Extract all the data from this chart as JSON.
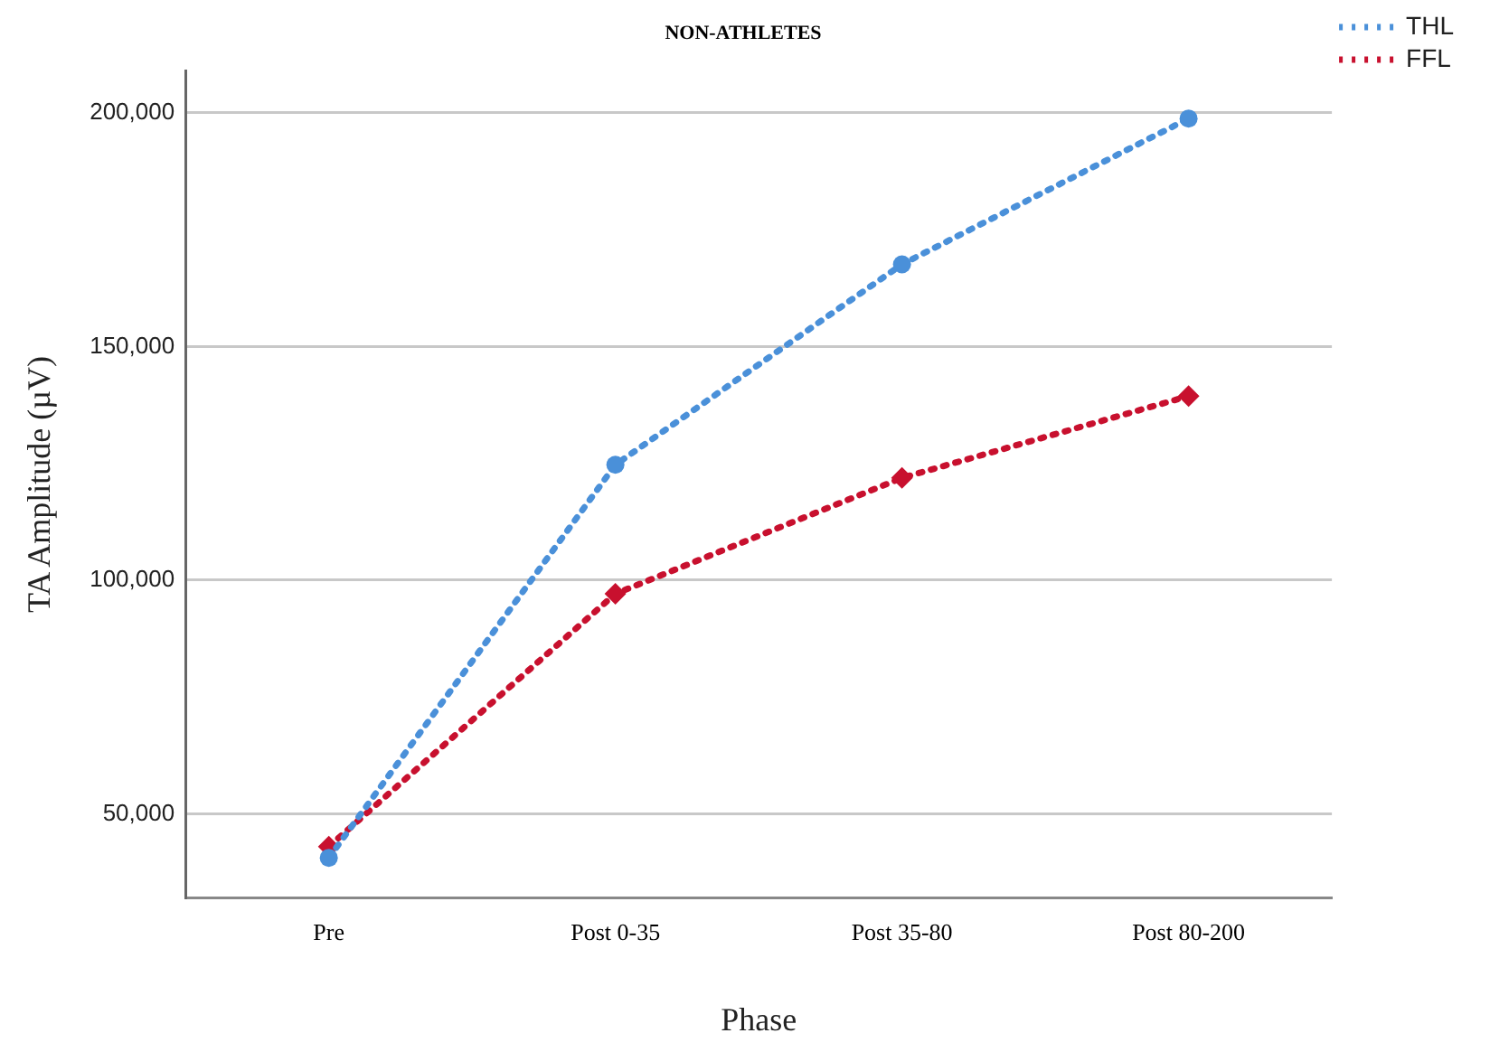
{
  "chart_data": {
    "type": "line",
    "title": "NON-ATHLETES",
    "xlabel": "Phase",
    "ylabel": "TA Amplitude (µV)",
    "categories": [
      "Pre",
      "Post 0-35",
      "Post 35-80",
      "Post 80-200"
    ],
    "series": [
      {
        "name": "THL",
        "color": "#4a90d9",
        "marker": "circle",
        "values": [
          40600,
          124700,
          167600,
          198800
        ]
      },
      {
        "name": "FFL",
        "color": "#c8102e",
        "marker": "diamond",
        "values": [
          43000,
          97100,
          121900,
          139400
        ]
      }
    ],
    "ylim": [
      32000,
      209000
    ],
    "yticks": [
      {
        "value": 50000,
        "label": "50,000"
      },
      {
        "value": 100000,
        "label": "100,000"
      },
      {
        "value": 150000,
        "label": "150,000"
      },
      {
        "value": 200000,
        "label": "200,000"
      }
    ],
    "grid": "y",
    "legend": "top right",
    "line_style": "dotted"
  }
}
